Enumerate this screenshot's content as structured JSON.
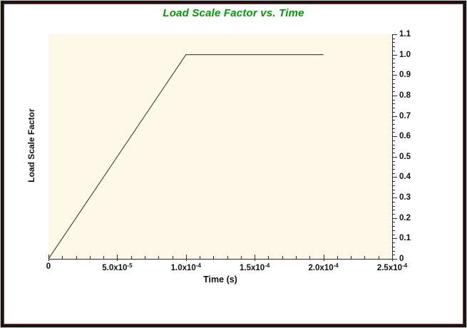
{
  "window": {
    "outer_edge_color": "#c9c9c9",
    "border_color": "#151515",
    "inner_border_color": "#993333",
    "background": "#ffffff"
  },
  "chart_data": {
    "type": "line",
    "title": "Load Scale Factor vs. Time",
    "title_color": "#009C00",
    "xlabel": "Time (s)",
    "ylabel": "Load Scale Factor",
    "xlim": [
      0,
      0.00025
    ],
    "ylim": [
      0,
      1.1
    ],
    "grid": false,
    "legend": false,
    "y_axis_side": "right",
    "plot_bg": "#FDF8E8",
    "axis_color": "#2b2b2b",
    "series": [
      {
        "name": "Load Scale Factor",
        "color": "#4f4f46",
        "x": [
          0,
          0.0001,
          0.0002
        ],
        "y": [
          0,
          1.0,
          1.0
        ]
      }
    ],
    "x_ticks": [
      {
        "v": 0,
        "label": "0",
        "sup": ""
      },
      {
        "v": 5e-05,
        "label": "5.0x10",
        "sup": "-5"
      },
      {
        "v": 0.0001,
        "label": "1.0x10",
        "sup": "-4"
      },
      {
        "v": 0.00015,
        "label": "1.5x10",
        "sup": "-4"
      },
      {
        "v": 0.0002,
        "label": "2.0x10",
        "sup": "-4"
      },
      {
        "v": 0.00025,
        "label": "2.5x10",
        "sup": "-4"
      }
    ],
    "x_minor_divisions": 5,
    "y_ticks": [
      {
        "v": 0.0,
        "label": "0"
      },
      {
        "v": 0.1,
        "label": "0.1"
      },
      {
        "v": 0.2,
        "label": "0.2"
      },
      {
        "v": 0.3,
        "label": "0.3"
      },
      {
        "v": 0.4,
        "label": "0.4"
      },
      {
        "v": 0.5,
        "label": "0.5"
      },
      {
        "v": 0.6,
        "label": "0.6"
      },
      {
        "v": 0.7,
        "label": "0.7"
      },
      {
        "v": 0.8,
        "label": "0.8"
      },
      {
        "v": 0.9,
        "label": "0.9"
      },
      {
        "v": 1.0,
        "label": "1.0"
      },
      {
        "v": 1.1,
        "label": "1.1"
      }
    ],
    "y_minor_divisions": 5
  }
}
